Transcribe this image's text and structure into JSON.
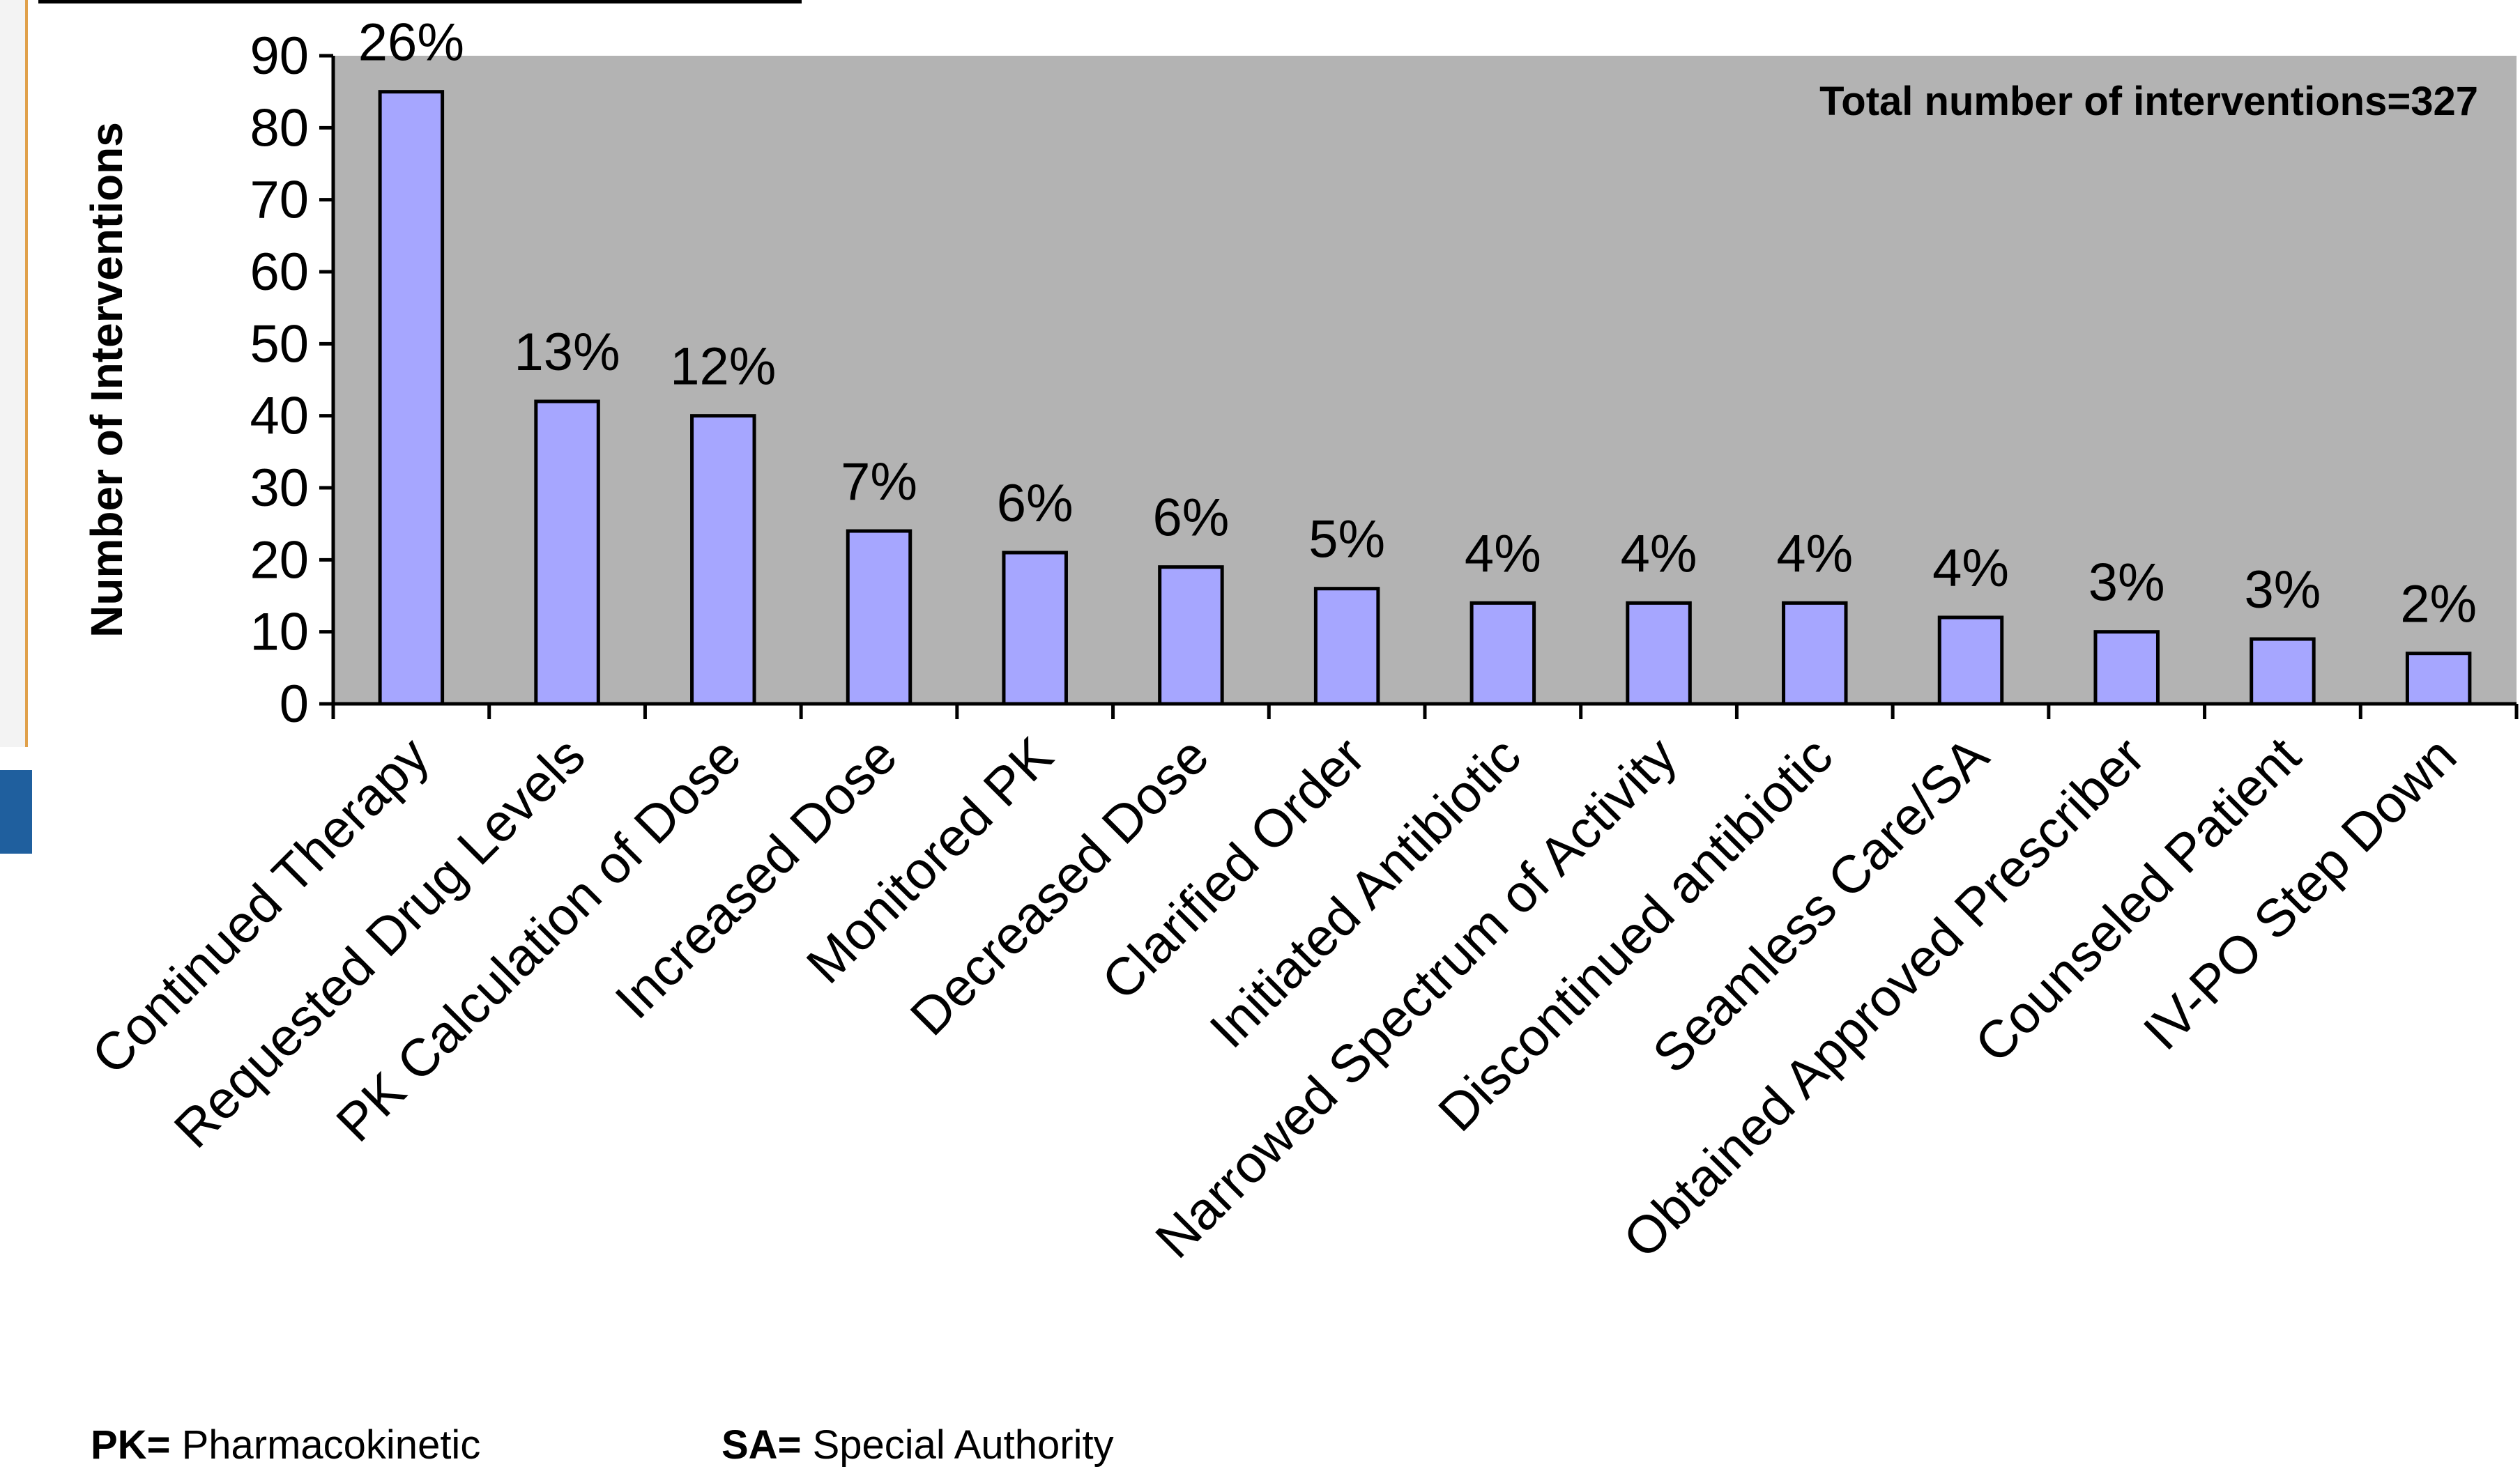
{
  "chart_data": {
    "type": "bar",
    "title": "",
    "xlabel": "",
    "ylabel": "Number of Interventions",
    "ylim": [
      0,
      90
    ],
    "yticks": [
      0,
      10,
      20,
      30,
      40,
      50,
      60,
      70,
      80,
      90
    ],
    "grid": false,
    "plot_background": "#b3b3b3",
    "bar_color": "#a6a6ff",
    "annotation": "Total number of interventions=327",
    "categories": [
      "Continued Therapy",
      "Requested Drug Levels",
      "PK Calculation of Dose",
      "Increased Dose",
      "Monitored PK",
      "Decreased Dose",
      "Clarified Order",
      "Initiated Antibiotic",
      "Narrowed Spectrum of Activity",
      "Discontinued antibiotic",
      "Seamless Care/SA",
      "Obtained Approved Prescriber",
      "Counseled Patient",
      "IV-PO Step Down"
    ],
    "values": [
      85,
      42,
      40,
      24,
      21,
      19,
      16,
      14,
      14,
      14,
      12,
      10,
      9,
      7
    ],
    "data_labels": [
      "26%",
      "13%",
      "12%",
      "7%",
      "6%",
      "6%",
      "5%",
      "4%",
      "4%",
      "4%",
      "4%",
      "3%",
      "3%",
      "2%"
    ]
  },
  "footnotes": {
    "pk_abbr": "PK=",
    "pk_text": "Pharmacokinetic",
    "sa_abbr": "SA=",
    "sa_text": "Special Authority"
  }
}
